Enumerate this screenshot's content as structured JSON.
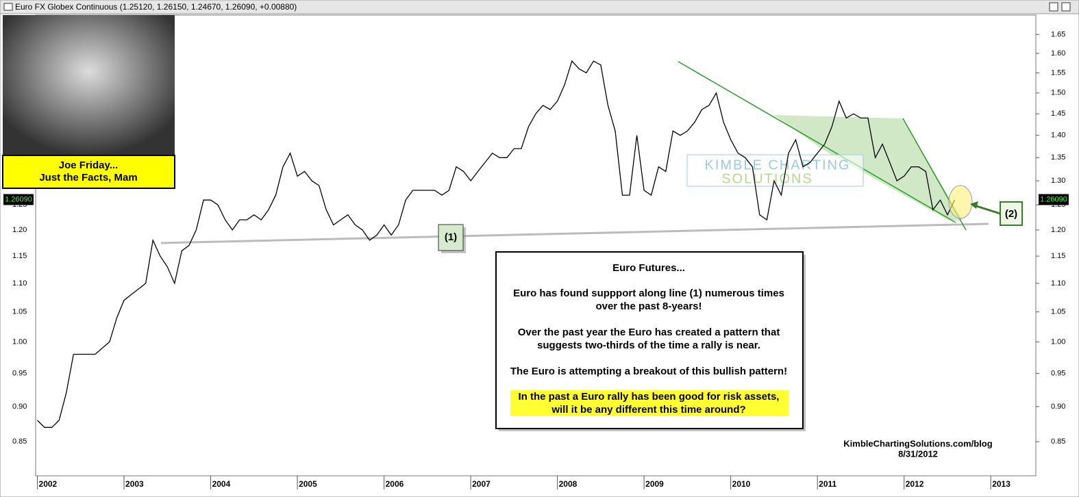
{
  "chart_data": {
    "type": "line",
    "log_scale": true,
    "title": "Euro FX Globex Continuous (1.25120, 1.26150, 1.24670, 1.26090, +0.00880)",
    "color": "#000000",
    "x": [
      2002,
      2002.083,
      2002.167,
      2002.25,
      2002.333,
      2002.417,
      2002.5,
      2002.583,
      2002.667,
      2002.75,
      2002.833,
      2002.917,
      2003,
      2003.083,
      2003.167,
      2003.25,
      2003.333,
      2003.417,
      2003.5,
      2003.583,
      2003.667,
      2003.75,
      2003.833,
      2003.917,
      2004,
      2004.083,
      2004.167,
      2004.25,
      2004.333,
      2004.417,
      2004.5,
      2004.583,
      2004.667,
      2004.75,
      2004.833,
      2004.917,
      2005,
      2005.083,
      2005.167,
      2005.25,
      2005.333,
      2005.417,
      2005.5,
      2005.583,
      2005.667,
      2005.75,
      2005.833,
      2005.917,
      2006,
      2006.083,
      2006.167,
      2006.25,
      2006.333,
      2006.417,
      2006.5,
      2006.583,
      2006.667,
      2006.75,
      2006.833,
      2006.917,
      2007,
      2007.083,
      2007.167,
      2007.25,
      2007.333,
      2007.417,
      2007.5,
      2007.583,
      2007.667,
      2007.75,
      2007.833,
      2007.917,
      2008,
      2008.083,
      2008.167,
      2008.25,
      2008.333,
      2008.417,
      2008.5,
      2008.583,
      2008.667,
      2008.75,
      2008.833,
      2008.917,
      2009,
      2009.083,
      2009.167,
      2009.25,
      2009.333,
      2009.417,
      2009.5,
      2009.583,
      2009.667,
      2009.75,
      2009.833,
      2009.917,
      2010,
      2010.083,
      2010.167,
      2010.25,
      2010.333,
      2010.417,
      2010.5,
      2010.583,
      2010.667,
      2010.75,
      2010.833,
      2010.917,
      2011,
      2011.083,
      2011.167,
      2011.25,
      2011.333,
      2011.417,
      2011.5,
      2011.583,
      2011.667,
      2011.75,
      2011.833,
      2011.917,
      2012,
      2012.083,
      2012.167,
      2012.25,
      2012.333,
      2012.417,
      2012.5,
      2012.583
    ],
    "values": [
      0.88,
      0.87,
      0.87,
      0.88,
      0.92,
      0.98,
      0.98,
      0.98,
      0.98,
      0.99,
      1.0,
      1.04,
      1.07,
      1.08,
      1.09,
      1.1,
      1.18,
      1.15,
      1.13,
      1.1,
      1.16,
      1.17,
      1.2,
      1.26,
      1.26,
      1.25,
      1.22,
      1.2,
      1.22,
      1.22,
      1.23,
      1.22,
      1.24,
      1.27,
      1.33,
      1.36,
      1.31,
      1.32,
      1.3,
      1.29,
      1.24,
      1.21,
      1.22,
      1.23,
      1.21,
      1.2,
      1.18,
      1.19,
      1.21,
      1.19,
      1.21,
      1.26,
      1.28,
      1.28,
      1.28,
      1.28,
      1.27,
      1.28,
      1.33,
      1.32,
      1.3,
      1.32,
      1.34,
      1.36,
      1.35,
      1.35,
      1.37,
      1.37,
      1.42,
      1.45,
      1.47,
      1.46,
      1.48,
      1.52,
      1.58,
      1.56,
      1.55,
      1.58,
      1.57,
      1.47,
      1.41,
      1.27,
      1.27,
      1.4,
      1.28,
      1.27,
      1.33,
      1.32,
      1.41,
      1.4,
      1.41,
      1.43,
      1.46,
      1.47,
      1.5,
      1.43,
      1.39,
      1.36,
      1.35,
      1.33,
      1.23,
      1.22,
      1.3,
      1.27,
      1.36,
      1.39,
      1.33,
      1.34,
      1.36,
      1.38,
      1.42,
      1.48,
      1.44,
      1.45,
      1.44,
      1.44,
      1.35,
      1.38,
      1.34,
      1.3,
      1.31,
      1.33,
      1.33,
      1.32,
      1.24,
      1.26,
      1.23,
      1.26
    ],
    "xlim": [
      2001.98,
      2013.52
    ],
    "xticks": [
      2002,
      2003,
      2004,
      2005,
      2006,
      2007,
      2008,
      2009,
      2010,
      2011,
      2012,
      2013
    ],
    "ylim": [
      0.804,
      1.703
    ],
    "yticks": [
      {
        "value": 0.85,
        "label": "0.85"
      },
      {
        "value": 0.9,
        "label": "0.90"
      },
      {
        "value": 0.95,
        "label": "0.95"
      },
      {
        "value": 1,
        "label": "1.00"
      },
      {
        "value": 1.05,
        "label": "1.05"
      },
      {
        "value": 1.1,
        "label": "1.10"
      },
      {
        "value": 1.15,
        "label": "1.15"
      },
      {
        "value": 1.2,
        "label": "1.20"
      },
      {
        "value": 1.25,
        "label": "1.25"
      },
      {
        "value": 1.3,
        "label": "1.30"
      },
      {
        "value": 1.35,
        "label": "1.35"
      },
      {
        "value": 1.4,
        "label": "1.40"
      },
      {
        "value": 1.45,
        "label": "1.45"
      },
      {
        "value": 1.5,
        "label": "1.50"
      },
      {
        "value": 1.55,
        "label": "1.55"
      },
      {
        "value": 1.6,
        "label": "1.60"
      },
      {
        "value": 1.65,
        "label": "1.65"
      }
    ],
    "last_price": {
      "value": 1.2609,
      "label": "1.26090"
    },
    "photo_caption": [
      "Joe Friday...",
      "Just the Facts, Mam"
    ],
    "label_1": "(1)",
    "label_2": "(2)",
    "watermark": [
      "KIMBLE CHARTING",
      "SOLUTIONS"
    ],
    "note": {
      "heading": "Euro Futures...",
      "paragraphs": [
        [
          "Euro has found suppport along line (1) numerous times",
          "over the past 8-years!"
        ],
        [
          "Over the past year the Euro has created a pattern that",
          "suggests two-thirds of the time a rally is near."
        ],
        [
          "The Euro is attempting a breakout of this bullish pattern!"
        ]
      ],
      "highlight": [
        "In the past a Euro rally has been good for risk assets,",
        "will it be any different this time around?"
      ]
    },
    "credit": [
      "KimbleChartingSolutions.com/blog",
      "8/31/2012"
    ]
  }
}
